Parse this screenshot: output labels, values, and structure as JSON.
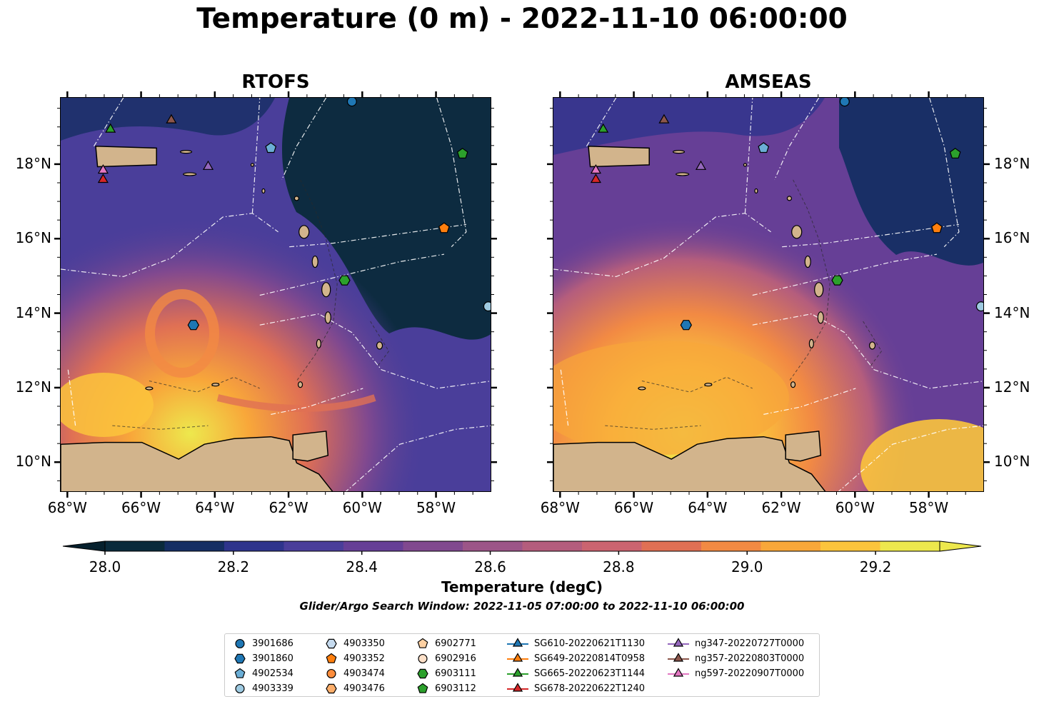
{
  "title": "Temperature (0 m) - 2022-11-10 06:00:00",
  "panels": [
    {
      "id": "rtofs",
      "title": "RTOFS"
    },
    {
      "id": "amseas",
      "title": "AMSEAS"
    }
  ],
  "axes": {
    "lat_ticks": [
      "18°N",
      "16°N",
      "14°N",
      "12°N",
      "10°N"
    ],
    "lon_ticks": [
      "68°W",
      "66°W",
      "64°W",
      "62°W",
      "60°W",
      "58°W"
    ],
    "lat_range": [
      9.2,
      19.8
    ],
    "lon_range": [
      -68.2,
      -56.5
    ]
  },
  "colorbar": {
    "label": "Temperature (degC)",
    "ticks": [
      "28.0",
      "28.2",
      "28.4",
      "28.6",
      "28.8",
      "29.0",
      "29.2"
    ],
    "range": [
      28.0,
      29.3
    ],
    "step": 0.1,
    "extend": "both",
    "colors": [
      "#0a2a3b",
      "#152e63",
      "#2e348c",
      "#4a3e9a",
      "#663f96",
      "#81498f",
      "#9c5588",
      "#b45d7d",
      "#cb6470",
      "#e07054",
      "#f28a43",
      "#f8a73a",
      "#fbc43c",
      "#ede84d"
    ],
    "under_color": "#06202d",
    "over_color": "#ede84d"
  },
  "subtitle": "Glider/Argo Search Window: 2022-11-05 07:00:00 to 2022-11-10 06:00:00",
  "land_color": "#d2b48c",
  "legend": {
    "columns": [
      [
        {
          "label": "3901686",
          "marker": "circle",
          "color": "#1f77b4"
        },
        {
          "label": "3901860",
          "marker": "hexagon",
          "color": "#1f77b4"
        },
        {
          "label": "4902534",
          "marker": "pentagon",
          "color": "#6baed6"
        },
        {
          "label": "4903339",
          "marker": "circle",
          "color": "#9ecae1"
        }
      ],
      [
        {
          "label": "4903350",
          "marker": "hexagon",
          "color": "#c6dbef"
        },
        {
          "label": "4903352",
          "marker": "pentagon",
          "color": "#ff7f0e"
        },
        {
          "label": "4903474",
          "marker": "circle",
          "color": "#fd8d3c"
        },
        {
          "label": "4903476",
          "marker": "hexagon",
          "color": "#fdae6b"
        }
      ],
      [
        {
          "label": "6902771",
          "marker": "pentagon",
          "color": "#fdd0a2"
        },
        {
          "label": "6902916",
          "marker": "circle",
          "color": "#fde0c8"
        },
        {
          "label": "6903111",
          "marker": "hexagon",
          "color": "#2ca02c"
        },
        {
          "label": "6903112",
          "marker": "pentagon",
          "color": "#2ca02c"
        }
      ],
      [
        {
          "label": "SG610-20220621T1130",
          "marker": "triangle",
          "color": "#1f77b4",
          "line": true
        },
        {
          "label": "SG649-20220814T0958",
          "marker": "triangle",
          "color": "#ff7f0e",
          "line": true
        },
        {
          "label": "SG665-20220623T1144",
          "marker": "triangle",
          "color": "#2ca02c",
          "line": true
        },
        {
          "label": "SG678-20220622T1240",
          "marker": "triangle",
          "color": "#d62728",
          "line": true
        }
      ],
      [
        {
          "label": "ng347-20220727T0000",
          "marker": "triangle",
          "color": "#9467bd",
          "line": true
        },
        {
          "label": "ng357-20220803T0000",
          "marker": "triangle",
          "color": "#8c564b",
          "line": true
        },
        {
          "label": "ng597-20220907T0000",
          "marker": "triangle",
          "color": "#e377c2",
          "line": true
        }
      ]
    ]
  },
  "platforms": [
    {
      "id": "3901686",
      "lon": -60.3,
      "lat": 19.7,
      "marker": "circle",
      "color": "#1f77b4"
    },
    {
      "id": "4903339",
      "lon": -56.6,
      "lat": 14.2,
      "marker": "circle",
      "color": "#9ecae1"
    },
    {
      "id": "3901860",
      "lon": -64.6,
      "lat": 13.7,
      "marker": "hexagon",
      "color": "#1f77b4"
    },
    {
      "id": "4902534",
      "lon": -62.5,
      "lat": 18.45,
      "marker": "pentagon",
      "color": "#6baed6"
    },
    {
      "id": "4903352",
      "lon": -57.8,
      "lat": 16.3,
      "marker": "pentagon",
      "color": "#ff7f0e"
    },
    {
      "id": "6903111",
      "lon": -60.5,
      "lat": 14.9,
      "marker": "hexagon",
      "color": "#2ca02c"
    },
    {
      "id": "6903112",
      "lon": -57.3,
      "lat": 18.3,
      "marker": "pentagon",
      "color": "#2ca02c"
    },
    {
      "id": "SG665-20220623T1144",
      "lon": -66.85,
      "lat": 18.95,
      "marker": "triangle",
      "color": "#2ca02c"
    },
    {
      "id": "ng357-20220803T0000",
      "lon": -65.2,
      "lat": 19.2,
      "marker": "triangle",
      "color": "#8c564b"
    },
    {
      "id": "ng347-20220727T0000",
      "lon": -64.2,
      "lat": 17.95,
      "marker": "triangle",
      "color": "#9467bd"
    },
    {
      "id": "ng597-20220907T0000",
      "lon": -67.05,
      "lat": 17.85,
      "marker": "triangle",
      "color": "#e377c2"
    },
    {
      "id": "SG678-20220622T1240",
      "lon": -67.05,
      "lat": 17.6,
      "marker": "triangle",
      "color": "#d62728"
    }
  ]
}
